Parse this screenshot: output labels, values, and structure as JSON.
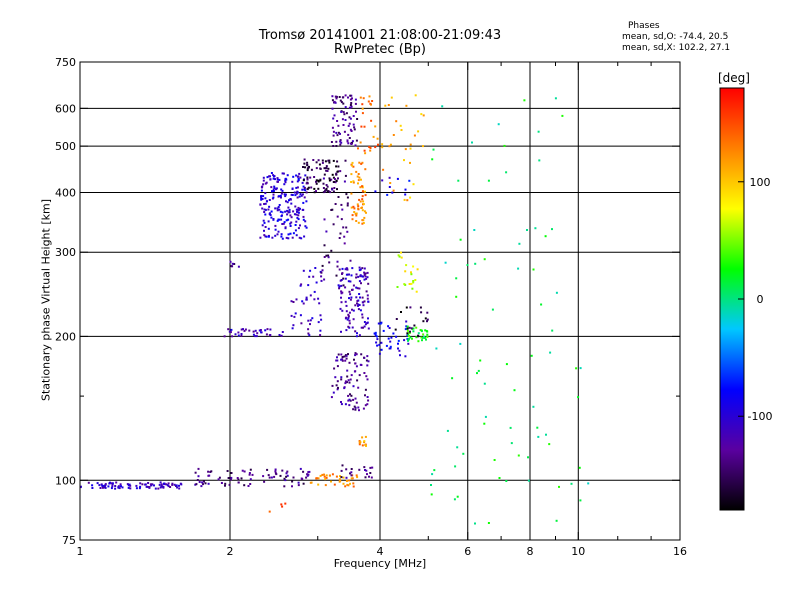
{
  "chart_data": {
    "type": "scatter",
    "title": "Tromsø 20141001 21:08:00-21:09:43",
    "subtitle": "RwPretec (Bp)",
    "xlabel": "Frequency [MHz]",
    "ylabel": "Stationary phase Virtual Height [km]",
    "x_scale": "log",
    "y_scale": "log",
    "xlim": [
      1,
      16
    ],
    "ylim": [
      75,
      750
    ],
    "x_ticks": [
      1,
      2,
      4,
      6,
      8,
      10,
      16
    ],
    "x_minor_ticks": [
      3,
      5,
      7,
      9,
      12,
      14
    ],
    "y_ticks": [
      75,
      100,
      200,
      300,
      400,
      500,
      600,
      750
    ],
    "y_minor_ticks": [
      150
    ],
    "grid": true,
    "phases": {
      "title": "Phases",
      "o_stats": "mean, sd,O: -74.4, 20.5",
      "x_stats": "mean, sd,X: 102.2, 27.1"
    },
    "colorbar": {
      "unit": "[deg]",
      "range": [
        -180,
        180
      ],
      "ticks": [
        "100",
        "0",
        "-100"
      ],
      "tick_values": [
        100,
        0,
        -100
      ],
      "colors": [
        "#000000",
        "#5a00a0",
        "#0000ff",
        "#00c8ff",
        "#00ff00",
        "#ffff00",
        "#ff8000",
        "#ff0000"
      ]
    },
    "clusters": [
      {
        "x": [
          1.0,
          1.6
        ],
        "y": [
          96,
          99
        ],
        "phase": -110,
        "n": 90
      },
      {
        "x": [
          1.7,
          2.9
        ],
        "y": [
          97,
          106
        ],
        "phase": -135,
        "n": 80
      },
      {
        "x": [
          2.9,
          3.6
        ],
        "y": [
          97,
          103
        ],
        "phase": 120,
        "n": 40
      },
      {
        "x": [
          3.3,
          3.9
        ],
        "y": [
          101,
          108
        ],
        "phase": -140,
        "n": 20
      },
      {
        "x": [
          2.4,
          2.6
        ],
        "y": [
          86,
          90
        ],
        "phase": 140,
        "n": 4
      },
      {
        "x": [
          1.95,
          2.6
        ],
        "y": [
          200,
          208
        ],
        "phase": -110,
        "n": 35
      },
      {
        "x": [
          2.0,
          2.1
        ],
        "y": [
          270,
          295
        ],
        "phase": -140,
        "n": 6
      },
      {
        "x": [
          2.3,
          2.85
        ],
        "y": [
          320,
          440
        ],
        "phase": -100,
        "n": 220
      },
      {
        "x": [
          2.8,
          3.3
        ],
        "y": [
          400,
          470
        ],
        "phase": -155,
        "n": 90
      },
      {
        "x": [
          2.65,
          3.1
        ],
        "y": [
          200,
          280
        ],
        "phase": -110,
        "n": 45
      },
      {
        "x": [
          3.05,
          3.5
        ],
        "y": [
          250,
          470
        ],
        "phase": -140,
        "n": 50
      },
      {
        "x": [
          3.2,
          3.6
        ],
        "y": [
          500,
          640
        ],
        "phase": -135,
        "n": 80
      },
      {
        "x": [
          3.3,
          3.8
        ],
        "y": [
          200,
          280
        ],
        "phase": -115,
        "n": 120
      },
      {
        "x": [
          3.2,
          3.8
        ],
        "y": [
          140,
          185
        ],
        "phase": -130,
        "n": 90
      },
      {
        "x": [
          3.5,
          3.75
        ],
        "y": [
          340,
          470
        ],
        "phase": 125,
        "n": 60
      },
      {
        "x": [
          3.6,
          4.0
        ],
        "y": [
          470,
          640
        ],
        "phase": 135,
        "n": 25
      },
      {
        "x": [
          3.6,
          3.85
        ],
        "y": [
          118,
          124
        ],
        "phase": 120,
        "n": 12
      },
      {
        "x": [
          3.9,
          4.6
        ],
        "y": [
          180,
          215
        ],
        "phase": -90,
        "n": 40
      },
      {
        "x": [
          4.5,
          5.0
        ],
        "y": [
          195,
          210
        ],
        "phase": 20,
        "n": 35
      },
      {
        "x": [
          4.2,
          5.0
        ],
        "y": [
          200,
          230
        ],
        "phase": -160,
        "n": 20
      },
      {
        "x": [
          4.3,
          4.8
        ],
        "y": [
          245,
          300
        ],
        "phase": 70,
        "n": 20
      },
      {
        "x": [
          4.0,
          4.9
        ],
        "y": [
          380,
          640
        ],
        "phase": 110,
        "n": 30
      },
      {
        "x": [
          3.9,
          4.6
        ],
        "y": [
          390,
          430
        ],
        "phase": -90,
        "n": 10
      },
      {
        "x": [
          4.9,
          10.5
        ],
        "y": [
          80,
          640
        ],
        "phase": 10,
        "n": 80
      }
    ]
  }
}
